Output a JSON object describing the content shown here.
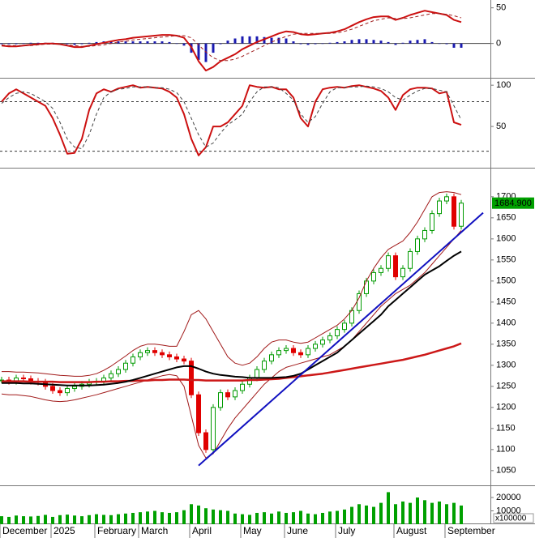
{
  "chart_data": [
    {
      "type": "line",
      "ylim": [
        -47,
        61
      ],
      "yticks": [
        0,
        50
      ],
      "series": [
        {
          "color": "#cc1010",
          "width": 2,
          "values": [
            -3,
            -4,
            -4,
            -3,
            -2,
            -1,
            0,
            0,
            -1,
            -3,
            -5,
            -5,
            -3,
            -1,
            1,
            3,
            5,
            6,
            8,
            9,
            10,
            11,
            12,
            12,
            11,
            8,
            -5,
            -25,
            -38,
            -33,
            -25,
            -20,
            -15,
            -8,
            -3,
            2,
            6,
            10,
            14,
            17,
            16,
            13,
            12,
            13,
            14,
            15,
            17,
            20,
            25,
            30,
            34,
            37,
            38,
            38,
            33,
            36,
            40,
            43,
            46,
            44,
            42,
            40,
            33,
            30
          ]
        },
        {
          "color": "#a02020",
          "width": 1,
          "dash": true,
          "values": [
            -2,
            -3,
            -3,
            -3,
            -3,
            -2,
            -1,
            -1,
            -1,
            -2,
            -3,
            -4,
            -4,
            -3,
            -2,
            0,
            2,
            3,
            5,
            6,
            7,
            8,
            9,
            10,
            11,
            11,
            8,
            -2,
            -12,
            -20,
            -24,
            -24,
            -22,
            -18,
            -13,
            -8,
            -3,
            2,
            6,
            10,
            13,
            14,
            14,
            14,
            14,
            14,
            15,
            17,
            20,
            24,
            28,
            32,
            34,
            36,
            35,
            35,
            36,
            38,
            40,
            42,
            42,
            41,
            39,
            36
          ]
        },
        {
          "color": "#1a1ab0",
          "style": "bar",
          "values": [
            -1,
            -1,
            -1,
            0,
            1,
            1,
            1,
            1,
            0,
            -1,
            -2,
            -1,
            1,
            2,
            3,
            3,
            3,
            3,
            3,
            3,
            3,
            3,
            3,
            2,
            0,
            -3,
            -13,
            -23,
            -26,
            -13,
            -1,
            4,
            7,
            10,
            10,
            10,
            9,
            8,
            8,
            7,
            3,
            -1,
            -2,
            -1,
            0,
            1,
            2,
            3,
            5,
            6,
            6,
            5,
            4,
            2,
            -2,
            1,
            4,
            5,
            6,
            2,
            0,
            -1,
            -6,
            -6
          ]
        }
      ]
    },
    {
      "type": "line",
      "ylim": [
        2,
        108
      ],
      "yticks": [
        50,
        100
      ],
      "levels": [
        20,
        80
      ],
      "series": [
        {
          "color": "#cc1010",
          "width": 2,
          "values": [
            80,
            90,
            95,
            90,
            85,
            80,
            75,
            60,
            40,
            17,
            18,
            35,
            70,
            90,
            95,
            92,
            96,
            98,
            100,
            97,
            98,
            97,
            96,
            92,
            85,
            65,
            35,
            15,
            25,
            50,
            50,
            55,
            65,
            75,
            100,
            98,
            97,
            98,
            95,
            95,
            85,
            60,
            50,
            80,
            95,
            97,
            98,
            97,
            99,
            100,
            98,
            96,
            93,
            85,
            70,
            88,
            95,
            97,
            97,
            96,
            90,
            92,
            55,
            52
          ]
        },
        {
          "color": "#444444",
          "width": 1,
          "dash": true,
          "values": [
            78,
            85,
            90,
            92,
            90,
            85,
            80,
            72,
            55,
            35,
            25,
            23,
            40,
            65,
            85,
            92,
            95,
            96,
            98,
            98,
            98,
            97,
            97,
            95,
            91,
            80,
            60,
            40,
            25,
            30,
            42,
            52,
            58,
            65,
            80,
            92,
            98,
            98,
            97,
            90,
            82,
            65,
            55,
            62,
            78,
            92,
            97,
            97,
            98,
            98,
            99,
            98,
            96,
            92,
            85,
            82,
            88,
            93,
            96,
            96,
            94,
            92,
            75,
            58
          ]
        }
      ]
    },
    {
      "type": "candlestick",
      "ylim": [
        1017,
        1767
      ],
      "yticks": [
        1050,
        1100,
        1150,
        1200,
        1250,
        1300,
        1350,
        1400,
        1450,
        1500,
        1550,
        1600,
        1650,
        1700
      ],
      "up_color": "#009a00",
      "down_color": "#e00000",
      "close": [
        1265,
        1262,
        1270,
        1268,
        1262,
        1260,
        1250,
        1240,
        1235,
        1245,
        1250,
        1255,
        1260,
        1262,
        1270,
        1280,
        1290,
        1305,
        1320,
        1330,
        1335,
        1330,
        1325,
        1320,
        1315,
        1310,
        1230,
        1140,
        1100,
        1200,
        1235,
        1225,
        1240,
        1255,
        1270,
        1290,
        1310,
        1325,
        1335,
        1340,
        1330,
        1325,
        1340,
        1350,
        1360,
        1370,
        1385,
        1400,
        1430,
        1470,
        1500,
        1520,
        1530,
        1560,
        1510,
        1530,
        1570,
        1600,
        1620,
        1660,
        1690,
        1700,
        1630,
        1684.9
      ],
      "last_price": {
        "value": 1684.9,
        "label": "1684.900"
      },
      "series": [
        {
          "color": "#a01818",
          "width": 1,
          "values": [
            1285,
            1285,
            1284,
            1284,
            1283,
            1282,
            1280,
            1278,
            1276,
            1275,
            1274,
            1274,
            1276,
            1280,
            1288,
            1298,
            1310,
            1322,
            1335,
            1345,
            1350,
            1350,
            1348,
            1345,
            1345,
            1380,
            1420,
            1430,
            1410,
            1380,
            1350,
            1320,
            1305,
            1300,
            1305,
            1320,
            1340,
            1355,
            1360,
            1360,
            1355,
            1352,
            1355,
            1365,
            1375,
            1385,
            1395,
            1410,
            1430,
            1460,
            1500,
            1530,
            1555,
            1575,
            1585,
            1595,
            1615,
            1640,
            1670,
            1700,
            1710,
            1712,
            1710,
            1705
          ]
        },
        {
          "color": "#a01818",
          "width": 1,
          "values": [
            1232,
            1230,
            1230,
            1228,
            1226,
            1222,
            1218,
            1215,
            1214,
            1215,
            1218,
            1222,
            1226,
            1230,
            1235,
            1240,
            1245,
            1250,
            1255,
            1260,
            1265,
            1270,
            1275,
            1278,
            1275,
            1250,
            1180,
            1110,
            1080,
            1090,
            1120,
            1150,
            1175,
            1195,
            1215,
            1235,
            1255,
            1270,
            1285,
            1295,
            1300,
            1305,
            1310,
            1315,
            1320,
            1325,
            1335,
            1345,
            1360,
            1380,
            1400,
            1420,
            1440,
            1455,
            1470,
            1480,
            1490,
            1505,
            1520,
            1540,
            1560,
            1580,
            1600,
            1620
          ]
        },
        {
          "color": "#cc1818",
          "width": 2.5,
          "values": [
            1262,
            1262,
            1262,
            1262,
            1261,
            1261,
            1261,
            1261,
            1260,
            1260,
            1260,
            1260,
            1260,
            1261,
            1261,
            1262,
            1262,
            1263,
            1263,
            1264,
            1264,
            1265,
            1265,
            1266,
            1266,
            1266,
            1265,
            1265,
            1264,
            1264,
            1264,
            1264,
            1264,
            1264,
            1265,
            1265,
            1266,
            1267,
            1268,
            1270,
            1272,
            1274,
            1276,
            1278,
            1280,
            1283,
            1286,
            1289,
            1292,
            1295,
            1298,
            1301,
            1304,
            1307,
            1310,
            1313,
            1317,
            1321,
            1325,
            1330,
            1335,
            1340,
            1345,
            1352
          ]
        },
        {
          "color": "#000000",
          "width": 2,
          "values": [
            1258,
            1258,
            1258,
            1257,
            1257,
            1256,
            1255,
            1254,
            1253,
            1252,
            1252,
            1252,
            1252,
            1253,
            1254,
            1256,
            1258,
            1261,
            1265,
            1270,
            1275,
            1280,
            1285,
            1290,
            1295,
            1298,
            1298,
            1292,
            1285,
            1280,
            1277,
            1275,
            1273,
            1272,
            1270,
            1270,
            1270,
            1270,
            1271,
            1272,
            1275,
            1280,
            1290,
            1300,
            1310,
            1320,
            1330,
            1345,
            1360,
            1375,
            1390,
            1405,
            1420,
            1440,
            1455,
            1470,
            1485,
            1500,
            1515,
            1525,
            1535,
            1548,
            1560,
            1570
          ]
        },
        {
          "color": "#1010c0",
          "width": 2,
          "x": [
            27,
            66
          ],
          "values": [
            1062,
            1662
          ]
        }
      ]
    },
    {
      "type": "bar",
      "ylim": [
        0,
        28500
      ],
      "yticks": [
        10000,
        20000
      ],
      "color": "#00a000",
      "annotation": "x100000",
      "values": [
        6000,
        5500,
        6500,
        6000,
        5800,
        6200,
        7000,
        5500,
        6800,
        7200,
        6500,
        6000,
        6800,
        7500,
        7000,
        6800,
        7500,
        8000,
        8500,
        9000,
        9500,
        10000,
        9000,
        8500,
        9000,
        10500,
        15000,
        14000,
        12000,
        11000,
        10500,
        10000,
        8000,
        7500,
        7000,
        8500,
        9000,
        8000,
        9500,
        8500,
        9000,
        10000,
        8000,
        7500,
        8500,
        9500,
        10000,
        11000,
        13000,
        15000,
        14000,
        13000,
        16000,
        24000,
        15000,
        17000,
        16000,
        20000,
        18000,
        16000,
        17000,
        15000,
        16000,
        14000
      ],
      "categories": [
        "December",
        null,
        null,
        null,
        null,
        null,
        null,
        "2025",
        null,
        null,
        null,
        null,
        null,
        "February",
        null,
        null,
        null,
        null,
        null,
        "March",
        null,
        null,
        null,
        null,
        null,
        null,
        "April",
        null,
        null,
        null,
        null,
        null,
        null,
        "May",
        null,
        null,
        null,
        null,
        null,
        "June",
        null,
        null,
        null,
        null,
        null,
        null,
        "July",
        null,
        null,
        null,
        null,
        null,
        null,
        null,
        "August",
        null,
        null,
        null,
        null,
        null,
        null,
        "September",
        null,
        null
      ]
    }
  ]
}
